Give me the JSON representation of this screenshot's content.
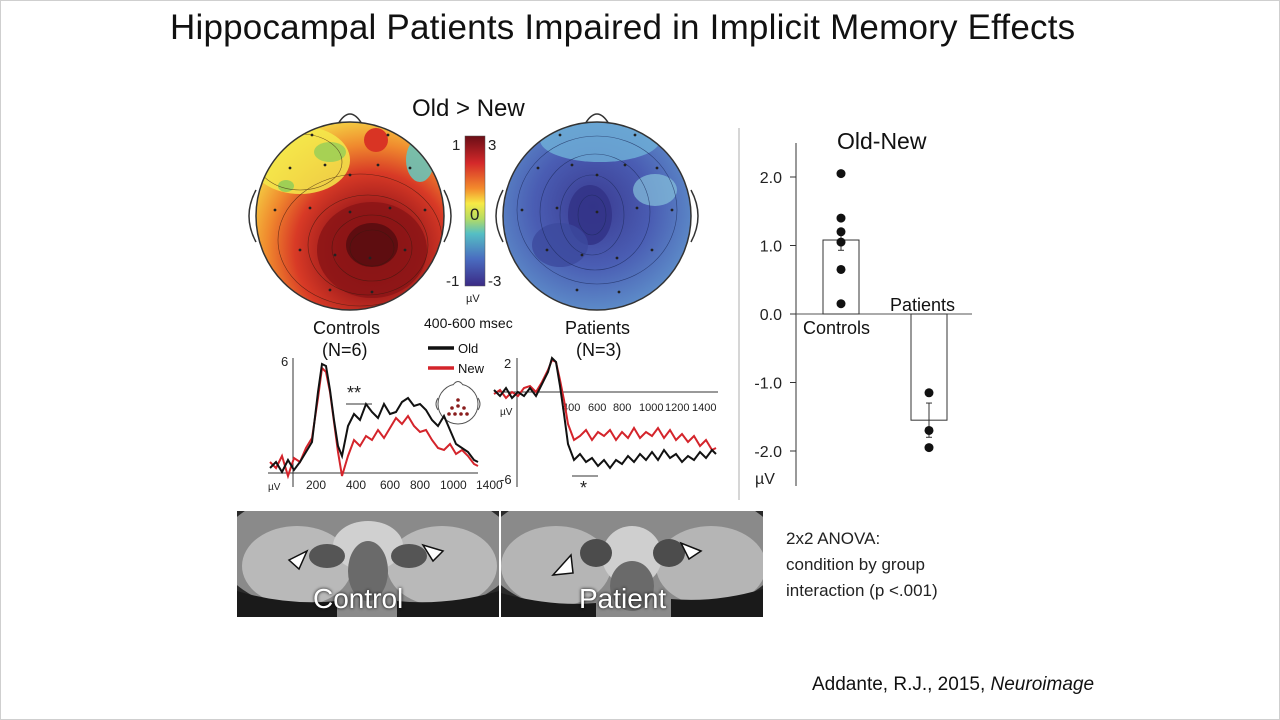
{
  "slide": {
    "title": "Hippocampal Patients Impaired in Implicit Memory Effects"
  },
  "topomaps": {
    "title": "Old > New",
    "time_window": "400-600 msec",
    "colorbar": {
      "left_labels": [
        "1",
        "-1"
      ],
      "right_labels": [
        "3",
        "-3"
      ],
      "mid_label": "0",
      "unit": "µV"
    },
    "controls": {
      "label": "Controls",
      "n": "(N=6)"
    },
    "patients": {
      "label": "Patients",
      "n": "(N=3)"
    }
  },
  "erp_controls": {
    "ytick_top": "6",
    "unit": "µV",
    "significance": "**",
    "xticks": [
      "200",
      "400",
      "600",
      "800",
      "1000",
      "1400"
    ]
  },
  "erp_patients": {
    "ytick_top": "2",
    "ytick_bottom": "-6",
    "unit": "µV",
    "significance": "*",
    "xticks": [
      "400",
      "600",
      "800",
      "1000",
      "1200",
      "1400"
    ]
  },
  "legend": {
    "old": "Old",
    "new": "New"
  },
  "colors": {
    "old": "#111111",
    "new": "#d4242b"
  },
  "chart_data": {
    "type": "bar",
    "title": "Old-New",
    "categories": [
      "Controls",
      "Patients"
    ],
    "values": [
      1.08,
      -1.55
    ],
    "error": [
      0.15,
      0.25
    ],
    "points": [
      [
        2.05,
        1.4,
        1.2,
        1.05,
        0.65,
        0.15
      ],
      [
        -1.15,
        -1.7,
        -1.95
      ]
    ],
    "ylabel": "µV",
    "ylim": [
      -2.4,
      2.5
    ],
    "yticks": [
      "2.0",
      "1.0",
      "0.0",
      "-1.0",
      "-2.0"
    ],
    "ytick_values": [
      2,
      1,
      0,
      -1,
      -2
    ],
    "grid": false
  },
  "mri": {
    "control_label": "Control",
    "patient_label": "Patient"
  },
  "anova": {
    "line1": "2x2 ANOVA:",
    "line2": "condition by group",
    "line3": "interaction (p <.001)"
  },
  "citation": {
    "text": "Addante, R.J., 2015, ",
    "journal": "Neuroimage"
  }
}
